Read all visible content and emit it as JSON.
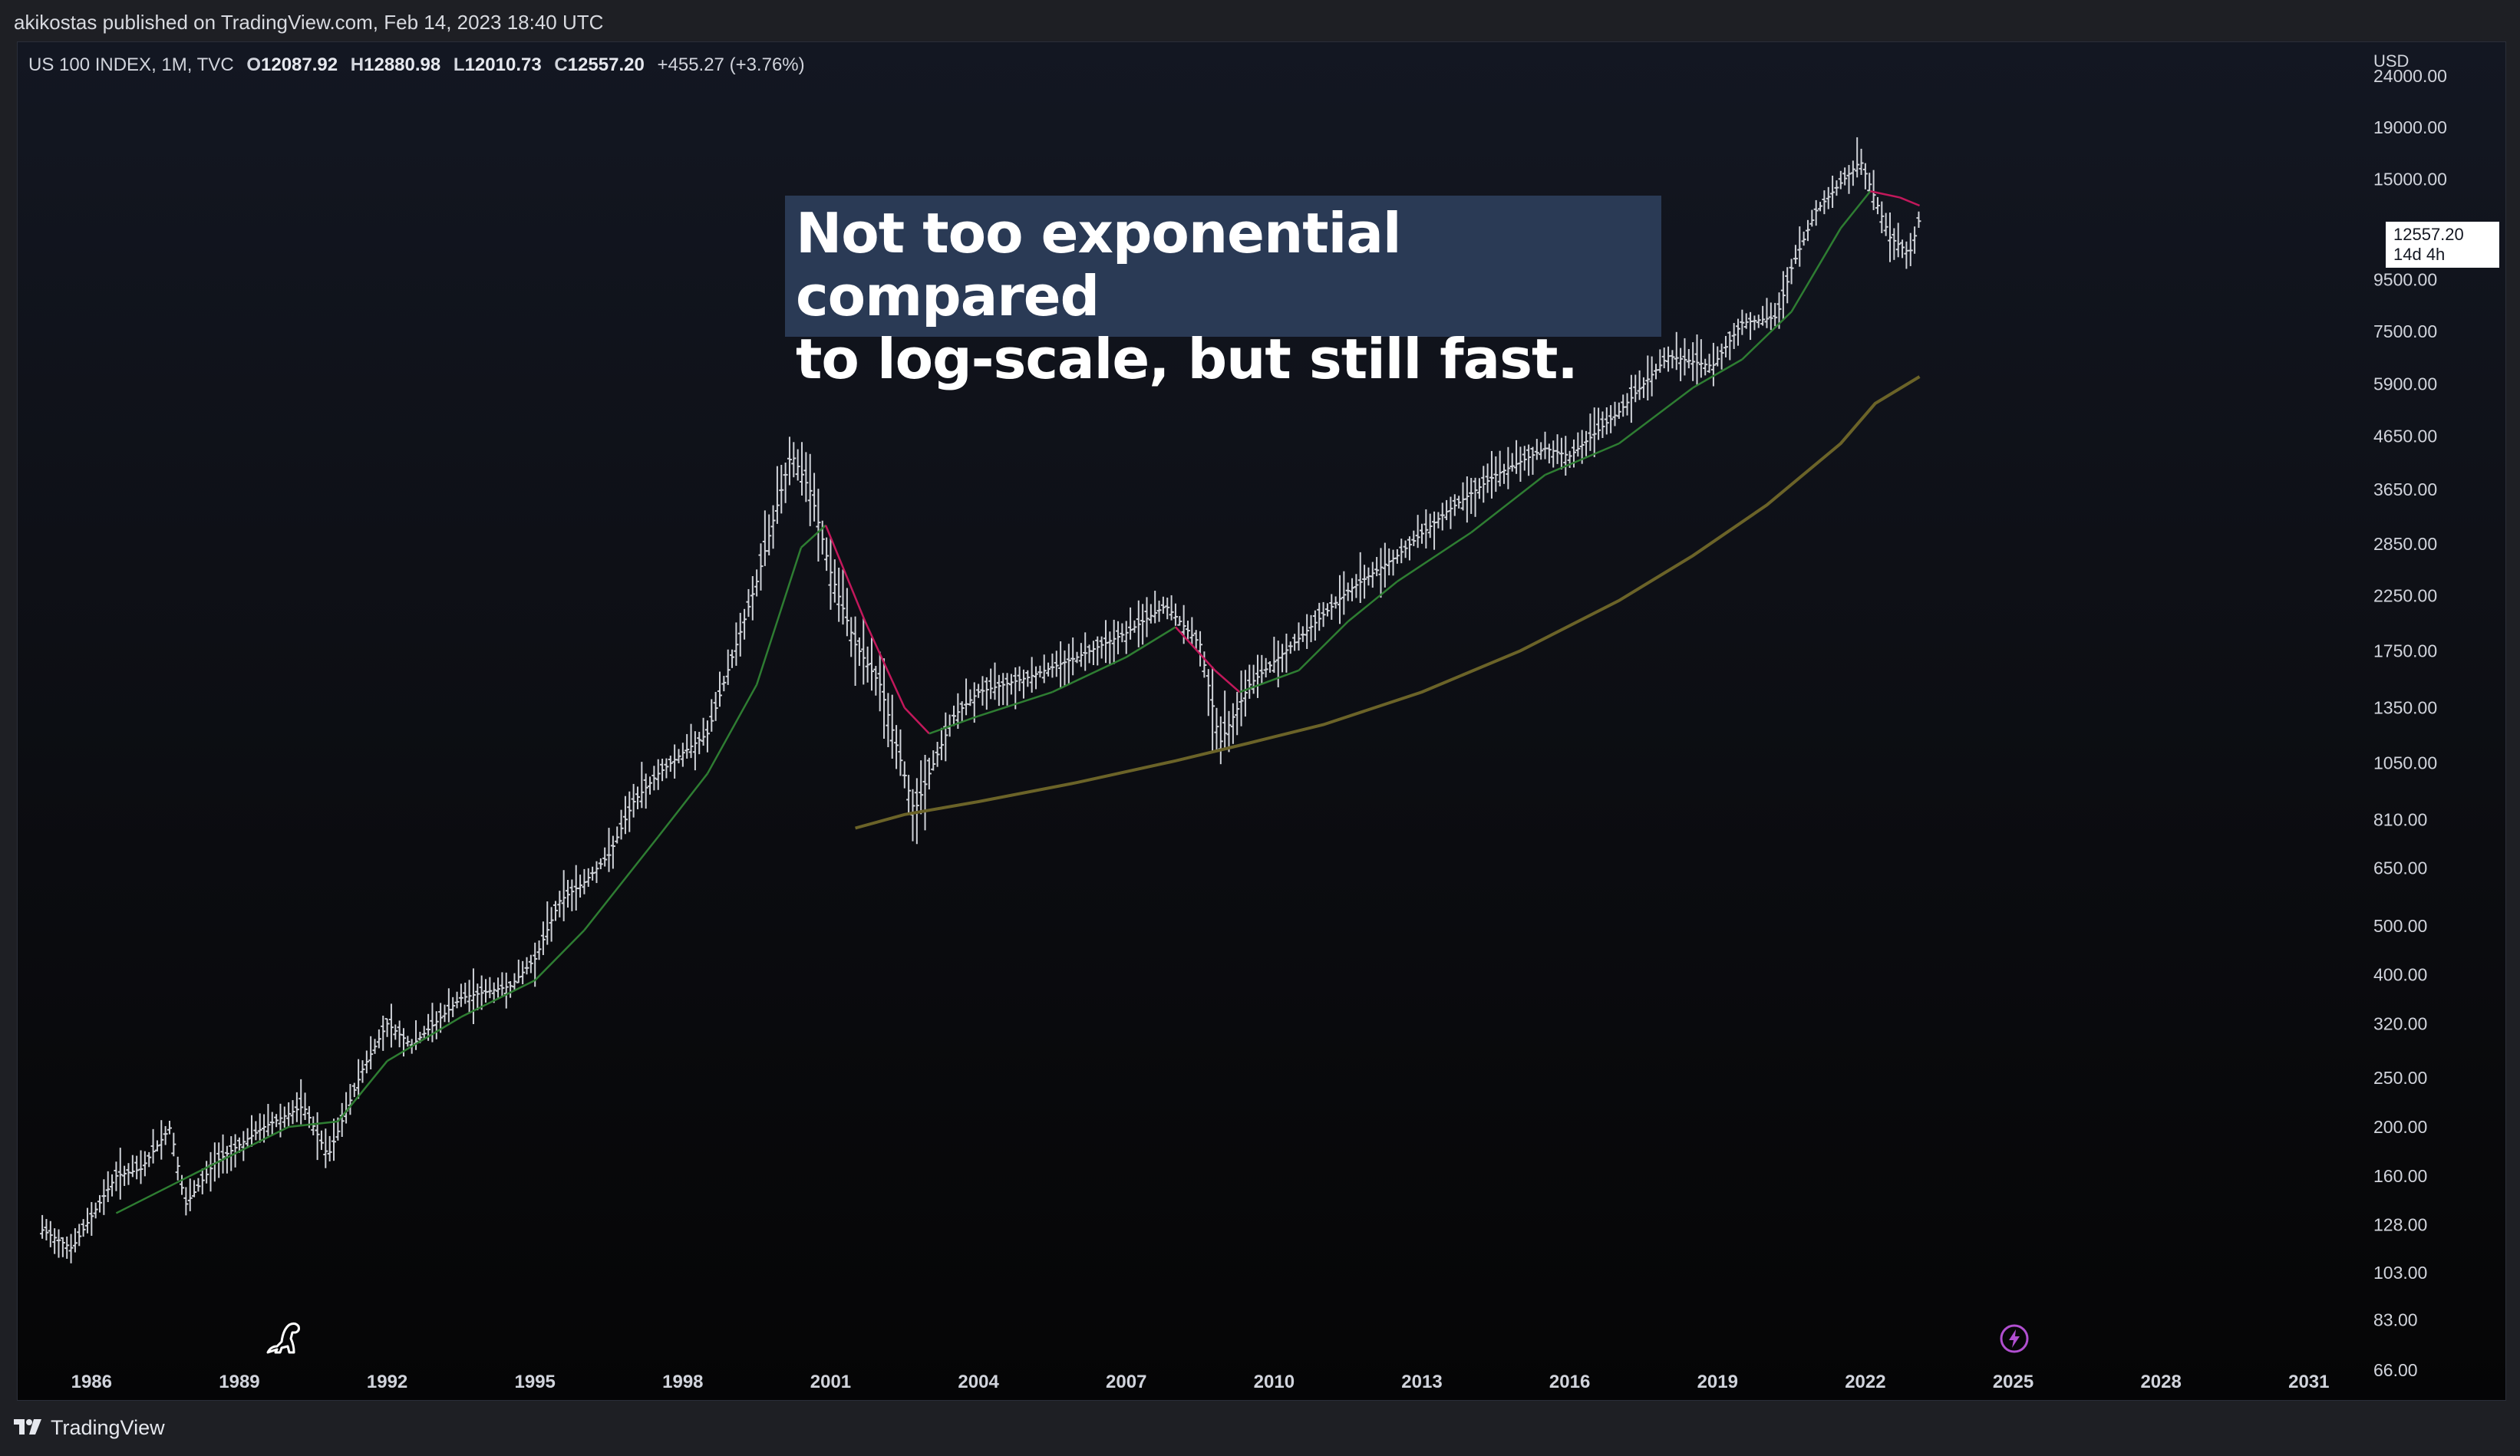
{
  "header": {
    "caption": "akikostas published on TradingView.com, Feb 14, 2023 18:40 UTC"
  },
  "legend": {
    "symbol": "US 100 INDEX, 1M, TVC",
    "open_label": "O",
    "open": "12087.92",
    "high_label": "H",
    "high": "12880.98",
    "low_label": "L",
    "low": "12010.73",
    "close_label": "C",
    "close": "12557.20",
    "change": "+455.27 (+3.76%)"
  },
  "annotation": {
    "line1": "Not too exponential compared",
    "line2": "to log-scale, but still fast."
  },
  "price_tag": {
    "price": "12557.20",
    "countdown": "14d 4h"
  },
  "footer": {
    "brand": "TradingView"
  },
  "icons": {
    "logo": "tradingview-logo-icon",
    "mascot": "dinosaur-icon",
    "alert": "lightning-bolt-icon"
  },
  "colors": {
    "background": "#0b0c10",
    "bars": "#cfd2d8",
    "ma_up": "#2e7d32",
    "ma_down": "#c2185b",
    "long_ma": "#6b6328",
    "annotation_bg": "#2a3a55",
    "alert": "#b14fd0"
  },
  "chart_data": {
    "type": "ohlc",
    "title": "US 100 INDEX, 1M, TVC",
    "y_unit": "USD",
    "y_scale": "log",
    "y_ticks": [
      "24000.00",
      "19000.00",
      "15000.00",
      "9500.00",
      "7500.00",
      "5900.00",
      "4650.00",
      "3650.00",
      "2850.00",
      "2250.00",
      "1750.00",
      "1350.00",
      "1050.00",
      "810.00",
      "650.00",
      "500.00",
      "400.00",
      "320.00",
      "250.00",
      "200.00",
      "160.00",
      "128.00",
      "103.00",
      "83.00",
      "66.00"
    ],
    "x_ticks": [
      "1986",
      "1989",
      "1992",
      "1995",
      "1998",
      "2001",
      "2004",
      "2007",
      "2010",
      "2013",
      "2016",
      "2019",
      "2022",
      "2025",
      "2028",
      "2031"
    ],
    "xlim": [
      1984.5,
      2032
    ],
    "ylim": [
      64,
      28000
    ],
    "grid": false,
    "series": [
      {
        "kind": "price_approx",
        "points": [
          [
            1985.0,
            125
          ],
          [
            1985.6,
            115
          ],
          [
            1986.5,
            160
          ],
          [
            1987.0,
            165
          ],
          [
            1987.6,
            200
          ],
          [
            1987.9,
            140
          ],
          [
            1988.5,
            170
          ],
          [
            1989.5,
            200
          ],
          [
            1990.3,
            220
          ],
          [
            1990.8,
            175
          ],
          [
            1991.5,
            260
          ],
          [
            1992.0,
            320
          ],
          [
            1992.5,
            290
          ],
          [
            1993.5,
            360
          ],
          [
            1994.5,
            380
          ],
          [
            1995.0,
            430
          ],
          [
            1995.5,
            560
          ],
          [
            1996.0,
            610
          ],
          [
            1996.5,
            690
          ],
          [
            1997.0,
            880
          ],
          [
            1997.5,
            1000
          ],
          [
            1998.0,
            1100
          ],
          [
            1998.5,
            1200
          ],
          [
            1999.0,
            1700
          ],
          [
            1999.5,
            2400
          ],
          [
            2000.2,
            4300
          ],
          [
            2000.6,
            3600
          ],
          [
            2001.0,
            2500
          ],
          [
            2001.5,
            1800
          ],
          [
            2002.0,
            1500
          ],
          [
            2002.7,
            840
          ],
          [
            2003.0,
            1000
          ],
          [
            2003.5,
            1300
          ],
          [
            2004.0,
            1450
          ],
          [
            2005.0,
            1550
          ],
          [
            2006.0,
            1700
          ],
          [
            2007.0,
            1900
          ],
          [
            2007.8,
            2150
          ],
          [
            2008.5,
            1800
          ],
          [
            2008.9,
            1150
          ],
          [
            2009.5,
            1500
          ],
          [
            2010.5,
            1850
          ],
          [
            2011.5,
            2300
          ],
          [
            2012.5,
            2700
          ],
          [
            2013.5,
            3300
          ],
          [
            2014.5,
            3900
          ],
          [
            2015.5,
            4400
          ],
          [
            2016.0,
            4250
          ],
          [
            2017.0,
            5200
          ],
          [
            2018.0,
            6700
          ],
          [
            2018.9,
            6400
          ],
          [
            2019.5,
            7800
          ],
          [
            2020.2,
            8000
          ],
          [
            2020.5,
            10000
          ],
          [
            2021.0,
            13000
          ],
          [
            2021.9,
            16300
          ],
          [
            2022.5,
            11500
          ],
          [
            2022.9,
            10700
          ],
          [
            2023.1,
            12557.2
          ]
        ]
      },
      {
        "kind": "moving_average_short",
        "points": [
          [
            1986.5,
            135
          ],
          [
            1988.0,
            160
          ],
          [
            1990.0,
            200
          ],
          [
            1991.0,
            205
          ],
          [
            1992.0,
            270
          ],
          [
            1993.5,
            330
          ],
          [
            1995.0,
            390
          ],
          [
            1996.0,
            490
          ],
          [
            1997.5,
            750
          ],
          [
            1998.5,
            1000
          ],
          [
            1999.5,
            1500
          ],
          [
            2000.4,
            2800
          ],
          [
            2000.9,
            3100
          ],
          [
            2001.7,
            2000
          ],
          [
            2002.5,
            1350
          ],
          [
            2003.0,
            1200
          ],
          [
            2004.0,
            1300
          ],
          [
            2005.5,
            1450
          ],
          [
            2007.0,
            1700
          ],
          [
            2008.0,
            1950
          ],
          [
            2008.8,
            1600
          ],
          [
            2009.3,
            1450
          ],
          [
            2010.5,
            1600
          ],
          [
            2011.5,
            2000
          ],
          [
            2012.5,
            2400
          ],
          [
            2014.0,
            3000
          ],
          [
            2015.5,
            3900
          ],
          [
            2017.0,
            4500
          ],
          [
            2018.5,
            5800
          ],
          [
            2019.5,
            6600
          ],
          [
            2020.5,
            8200
          ],
          [
            2021.5,
            12000
          ],
          [
            2022.1,
            14200
          ],
          [
            2022.7,
            13800
          ],
          [
            2023.1,
            13300
          ]
        ]
      },
      {
        "kind": "moving_average_long",
        "points": [
          [
            2001.5,
            780
          ],
          [
            2002.5,
            830
          ],
          [
            2004.0,
            880
          ],
          [
            2006.0,
            960
          ],
          [
            2008.0,
            1060
          ],
          [
            2009.5,
            1150
          ],
          [
            2011.0,
            1250
          ],
          [
            2013.0,
            1450
          ],
          [
            2015.0,
            1750
          ],
          [
            2017.0,
            2200
          ],
          [
            2018.5,
            2700
          ],
          [
            2020.0,
            3400
          ],
          [
            2021.5,
            4500
          ],
          [
            2022.2,
            5400
          ],
          [
            2023.1,
            6100
          ]
        ]
      }
    ]
  }
}
